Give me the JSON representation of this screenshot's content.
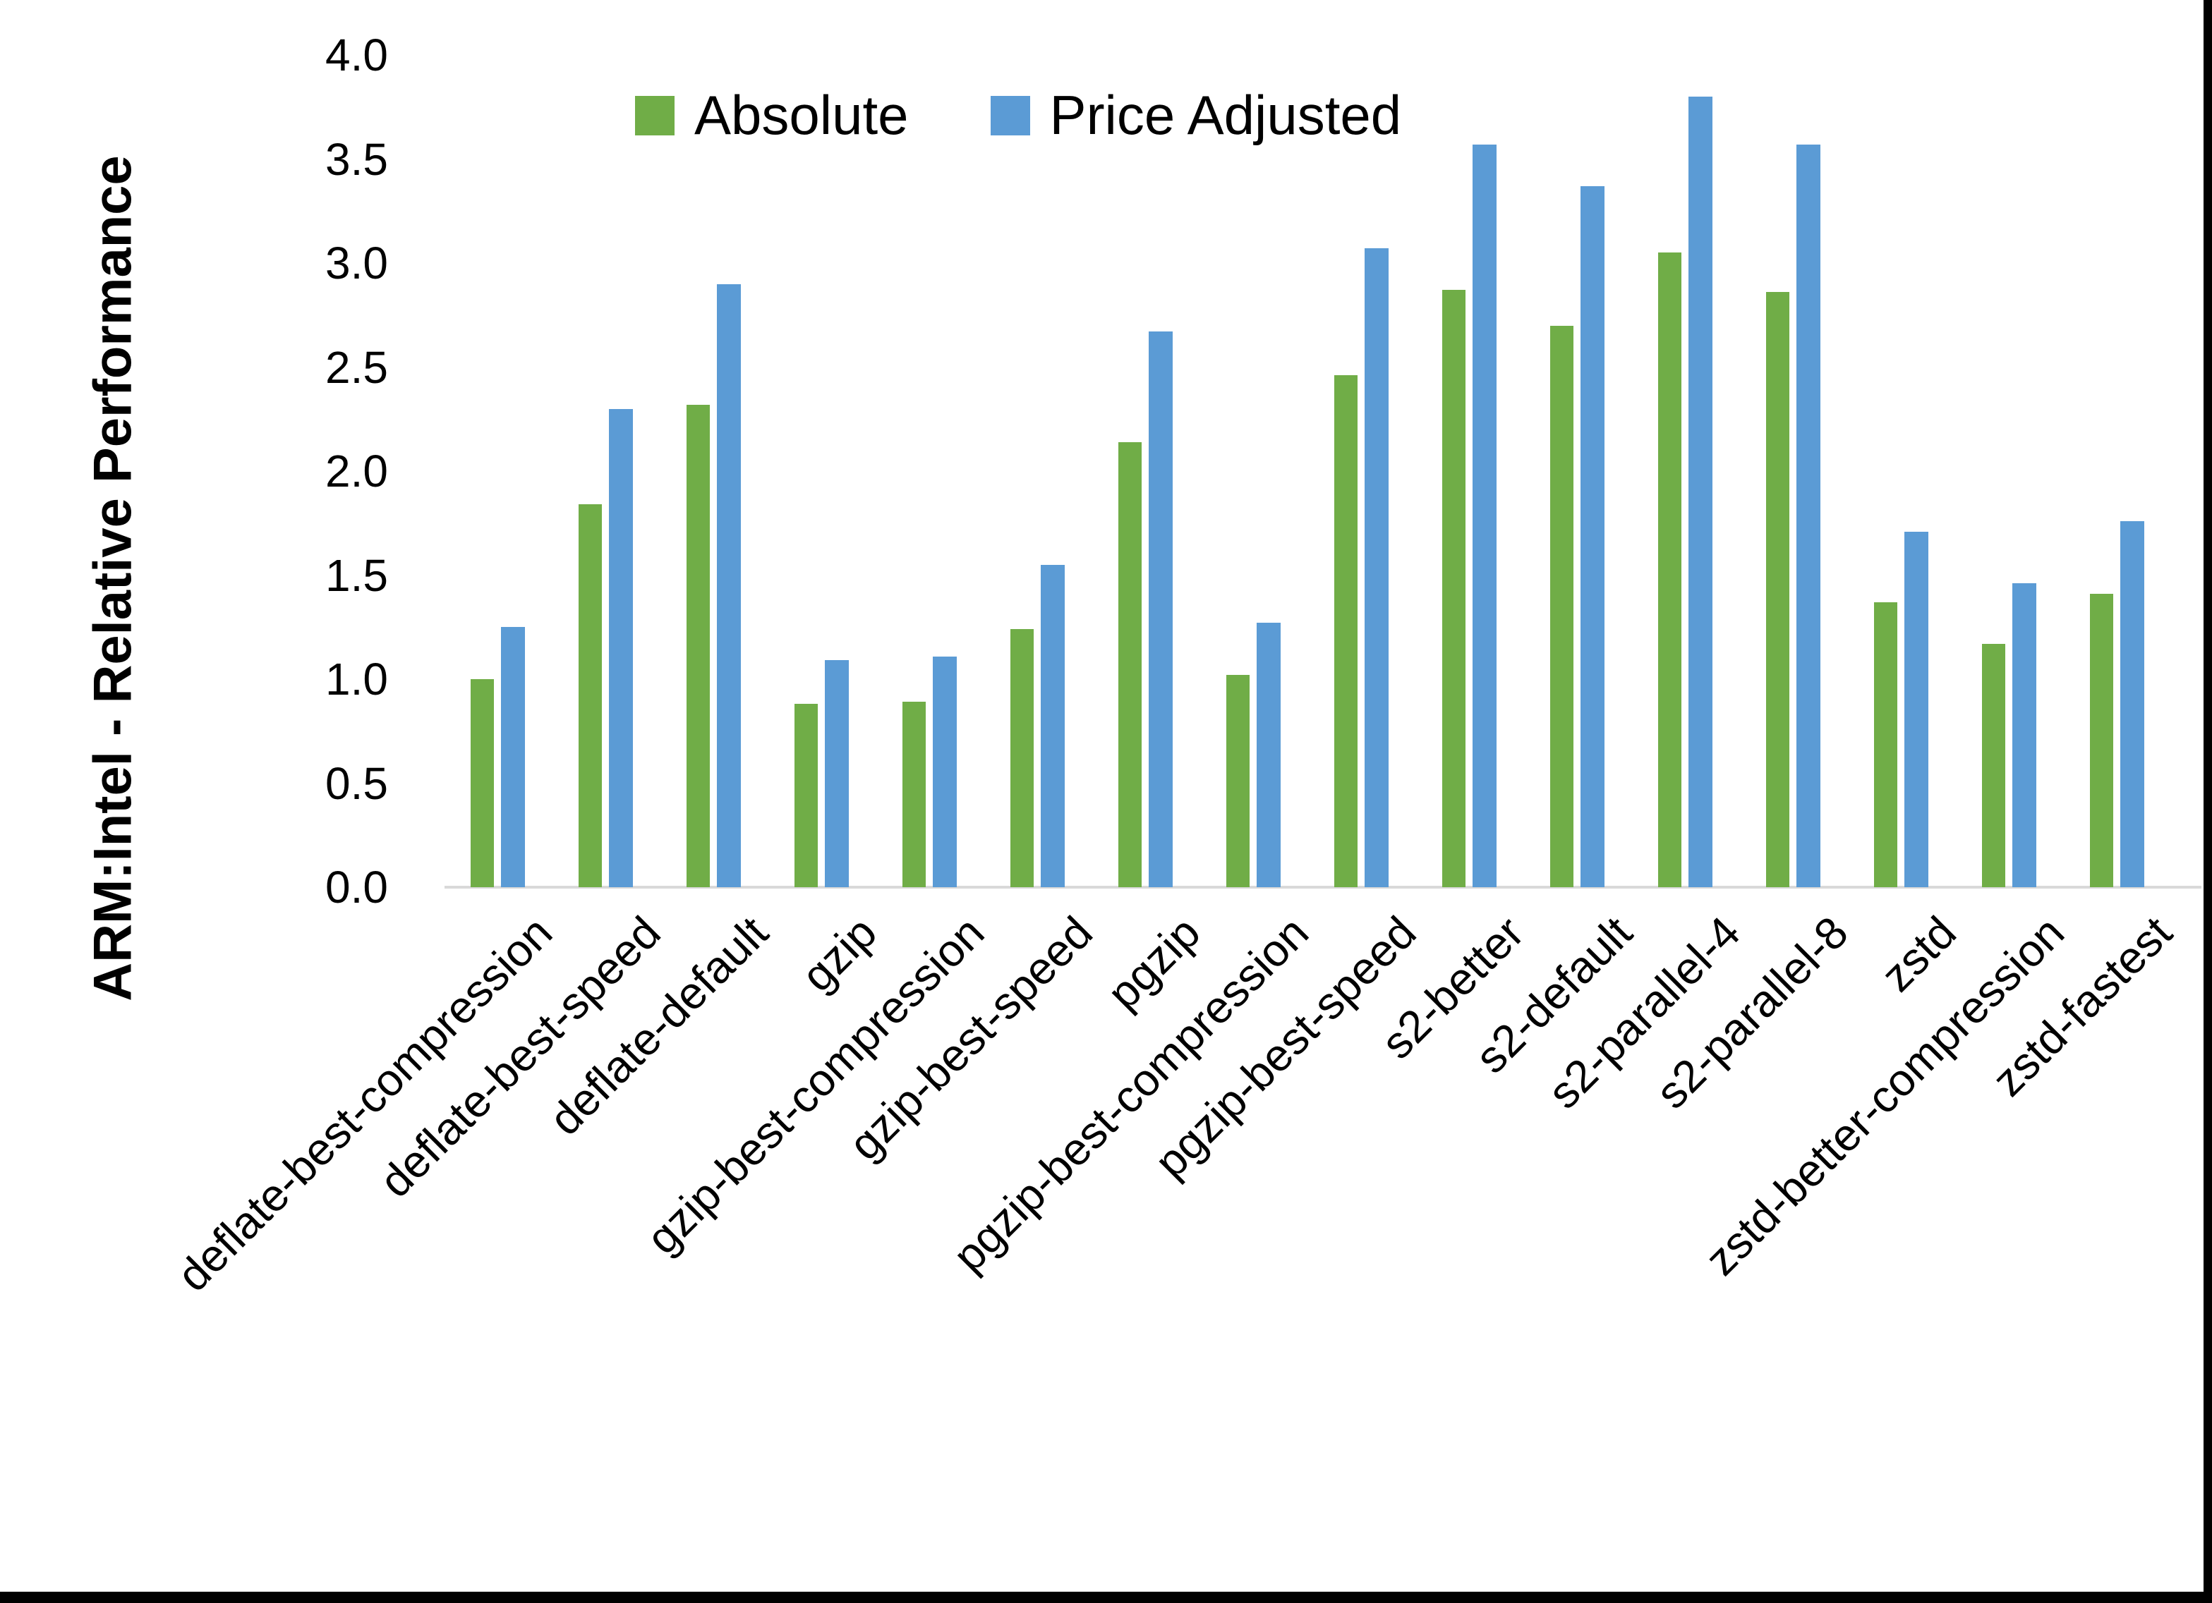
{
  "chart_data": {
    "type": "bar",
    "title": "",
    "xlabel": "",
    "ylabel": "ARM:Intel - Relative Performance",
    "ylim": [
      0.0,
      4.0
    ],
    "ytick_step": 0.5,
    "yticks": [
      "0.0",
      "0.5",
      "1.0",
      "1.5",
      "2.0",
      "2.5",
      "3.0",
      "3.5",
      "4.0"
    ],
    "grid": false,
    "legend_position": "top-center",
    "categories": [
      "deflate-best-compression",
      "deflate-best-speed",
      "deflate-default",
      "gzip",
      "gzip-best-compression",
      "gzip-best-speed",
      "pgzip",
      "pgzip-best-compression",
      "pgzip-best-speed",
      "s2-better",
      "s2-default",
      "s2-parallel-4",
      "s2-parallel-8",
      "zstd",
      "zstd-better-compression",
      "zstd-fastest"
    ],
    "series": [
      {
        "name": "Absolute",
        "color": "#70AD47",
        "values": [
          1.0,
          1.84,
          2.32,
          0.88,
          0.89,
          1.24,
          2.14,
          1.02,
          2.46,
          2.87,
          2.7,
          3.05,
          2.86,
          1.37,
          1.17,
          1.41
        ]
      },
      {
        "name": "Price Adjusted",
        "color": "#5B9BD5",
        "values": [
          1.25,
          2.3,
          2.9,
          1.09,
          1.11,
          1.55,
          2.67,
          1.27,
          3.07,
          3.57,
          3.37,
          3.8,
          3.57,
          1.71,
          1.46,
          1.76
        ]
      }
    ]
  },
  "legend": {
    "absolute_label": "Absolute",
    "price_adjusted_label": "Price Adjusted"
  },
  "axes": {
    "y_title": "ARM:Intel - Relative Performance"
  },
  "colors": {
    "absolute": "#70AD47",
    "price_adjusted": "#5B9BD5",
    "axis_line": "#d9d9d9",
    "frame": "#000000",
    "background": "#ffffff"
  }
}
